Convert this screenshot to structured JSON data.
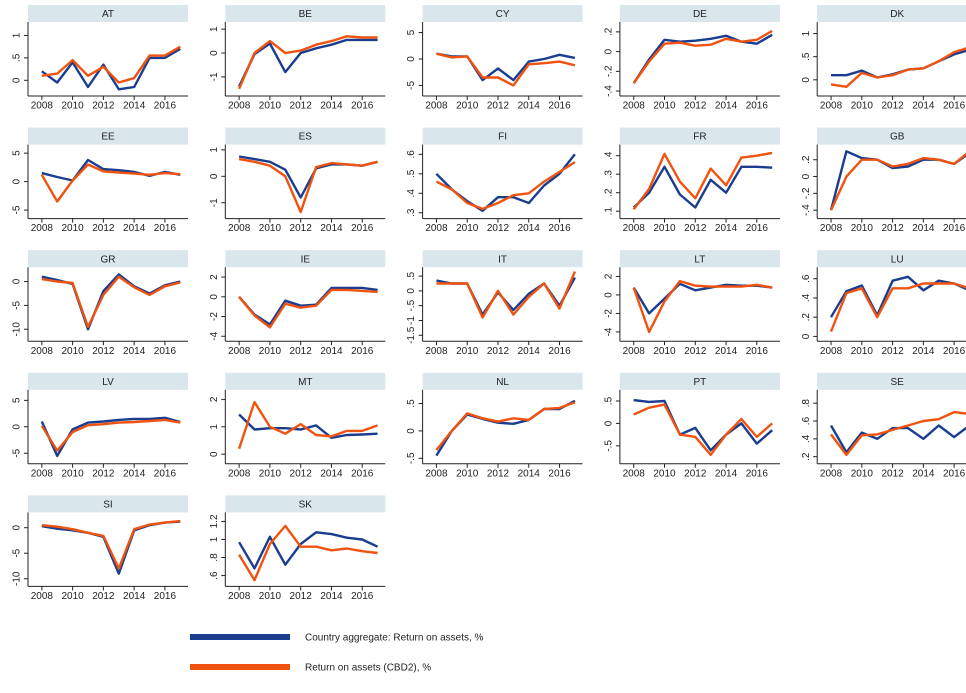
{
  "chart_data": {
    "type": "line",
    "x": [
      2008,
      2009,
      2010,
      2011,
      2012,
      2013,
      2014,
      2015,
      2016,
      2017
    ],
    "xlim": [
      2007.1,
      2017.5
    ],
    "xticks": [
      2008,
      2010,
      2012,
      2014,
      2016
    ],
    "series": [
      {
        "name": "Country aggregate: Return on assets, %",
        "color": "#1a3d8f"
      },
      {
        "name": "Return on assets (CBD2), %",
        "color": "#f0530f"
      }
    ],
    "panels": [
      {
        "title": "AT",
        "ylim": [
          -0.35,
          1.3
        ],
        "yticks": [
          0,
          {
            "value": 0.5,
            "label": ".5"
          },
          1
        ],
        "series": [
          {
            "values": [
              0.2,
              -0.05,
              0.4,
              -0.15,
              0.35,
              -0.2,
              -0.15,
              0.5,
              0.5,
              0.7
            ]
          },
          {
            "values": [
              0.1,
              0.15,
              0.45,
              0.1,
              0.3,
              -0.05,
              0.05,
              0.55,
              0.55,
              0.75
            ]
          }
        ]
      },
      {
        "title": "BE",
        "ylim": [
          -1.8,
          1.3
        ],
        "yticks": [
          -1,
          0,
          1
        ],
        "series": [
          {
            "values": [
              -1.4,
              -0.05,
              0.4,
              -0.8,
              0.0,
              0.2,
              0.35,
              0.55,
              0.55,
              0.55
            ]
          },
          {
            "values": [
              -1.5,
              0.0,
              0.5,
              0.0,
              0.1,
              0.35,
              0.5,
              0.7,
              0.65,
              0.65
            ]
          }
        ]
      },
      {
        "title": "CY",
        "ylim": [
          -7,
          7
        ],
        "yticks": [
          -5,
          0,
          5
        ],
        "series": [
          {
            "values": [
              1,
              0.5,
              0.5,
              -4,
              -1.8,
              -4,
              -0.5,
              0,
              0.8,
              0.2
            ]
          },
          {
            "values": [
              1,
              0.3,
              0.5,
              -3.5,
              -3.5,
              -5,
              -1,
              -0.8,
              -0.5,
              -1.2
            ]
          }
        ]
      },
      {
        "title": "DE",
        "ylim": [
          -0.45,
          0.3
        ],
        "yticks": [
          {
            "value": -0.4,
            "label": "-.4"
          },
          {
            "value": -0.2,
            "label": "-.2"
          },
          0,
          {
            "value": 0.2,
            "label": ".2"
          }
        ],
        "series": [
          {
            "values": [
              -0.32,
              -0.08,
              0.12,
              0.1,
              0.11,
              0.13,
              0.16,
              0.1,
              0.08,
              0.17
            ]
          },
          {
            "values": [
              -0.32,
              -0.1,
              0.08,
              0.09,
              0.06,
              0.07,
              0.13,
              0.1,
              0.12,
              0.21
            ]
          }
        ]
      },
      {
        "title": "DK",
        "ylim": [
          -0.35,
          1.25
        ],
        "yticks": [
          0,
          {
            "value": 0.5,
            "label": ".5"
          },
          1
        ],
        "series": [
          {
            "values": [
              0.1,
              0.1,
              0.2,
              0.05,
              0.12,
              0.22,
              0.25,
              0.4,
              0.55,
              0.65
            ]
          },
          {
            "values": [
              -0.1,
              -0.15,
              0.15,
              0.05,
              0.1,
              0.22,
              0.25,
              0.4,
              0.6,
              0.7
            ]
          }
        ]
      },
      {
        "title": "EE",
        "ylim": [
          -6.5,
          6.5
        ],
        "yticks": [
          -5,
          0,
          5
        ],
        "series": [
          {
            "values": [
              1.5,
              0.8,
              0.2,
              3.8,
              2.2,
              2.0,
              1.7,
              1.0,
              1.7,
              1.2
            ]
          },
          {
            "values": [
              1.2,
              -3.5,
              0.2,
              3.0,
              1.8,
              1.6,
              1.4,
              1.2,
              1.5,
              1.3
            ]
          }
        ]
      },
      {
        "title": "ES",
        "ylim": [
          -1.6,
          1.2
        ],
        "yticks": [
          -1,
          0,
          1
        ],
        "series": [
          {
            "values": [
              0.75,
              0.65,
              0.55,
              0.25,
              -0.8,
              0.3,
              0.45,
              0.45,
              0.4,
              0.55
            ]
          },
          {
            "values": [
              0.65,
              0.55,
              0.4,
              0.0,
              -1.35,
              0.35,
              0.5,
              0.45,
              0.4,
              0.55
            ]
          }
        ]
      },
      {
        "title": "FI",
        "ylim": [
          0.27,
          0.65
        ],
        "yticks": [
          {
            "value": 0.3,
            "label": ".3"
          },
          {
            "value": 0.4,
            "label": ".4"
          },
          {
            "value": 0.5,
            "label": ".5"
          },
          {
            "value": 0.6,
            "label": ".6"
          }
        ],
        "series": [
          {
            "values": [
              0.5,
              0.42,
              0.36,
              0.31,
              0.38,
              0.38,
              0.35,
              0.44,
              0.5,
              0.6
            ]
          },
          {
            "values": [
              0.46,
              0.42,
              0.35,
              0.32,
              0.35,
              0.39,
              0.4,
              0.46,
              0.51,
              0.56
            ]
          }
        ]
      },
      {
        "title": "FR",
        "ylim": [
          0.06,
          0.46
        ],
        "yticks": [
          {
            "value": 0.1,
            "label": ".1"
          },
          {
            "value": 0.2,
            "label": ".2"
          },
          {
            "value": 0.3,
            "label": ".3"
          },
          {
            "value": 0.4,
            "label": ".4"
          }
        ],
        "series": [
          {
            "values": [
              0.12,
              0.2,
              0.34,
              0.19,
              0.12,
              0.27,
              0.2,
              0.34,
              0.34,
              0.335
            ]
          },
          {
            "values": [
              0.11,
              0.22,
              0.41,
              0.26,
              0.17,
              0.33,
              0.24,
              0.39,
              0.4,
              0.415
            ]
          }
        ]
      },
      {
        "title": "GB",
        "ylim": [
          -0.5,
          0.38
        ],
        "yticks": [
          {
            "value": -0.4,
            "label": "-.4"
          },
          {
            "value": -0.2,
            "label": "-.2"
          },
          0,
          {
            "value": 0.2,
            "label": ".2"
          }
        ],
        "series": [
          {
            "values": [
              -0.4,
              0.3,
              0.22,
              0.2,
              0.1,
              0.12,
              0.2,
              0.2,
              0.15,
              0.28
            ]
          },
          {
            "values": [
              -0.4,
              0.0,
              0.2,
              0.2,
              0.12,
              0.15,
              0.22,
              0.2,
              0.15,
              0.3
            ]
          }
        ]
      },
      {
        "title": "GR",
        "ylim": [
          -12.5,
          3
        ],
        "yticks": [
          -10,
          -5,
          0
        ],
        "series": [
          {
            "values": [
              1,
              0.3,
              -0.5,
              -10,
              -2,
              1.5,
              -1,
              -2.5,
              -0.8,
              0
            ]
          },
          {
            "values": [
              0.5,
              0,
              -0.3,
              -9.5,
              -2.8,
              1,
              -1.2,
              -2.8,
              -1,
              -0.2
            ]
          }
        ]
      },
      {
        "title": "IE",
        "ylim": [
          -4.5,
          3
        ],
        "yticks": [
          -4,
          -2,
          0,
          2
        ],
        "series": [
          {
            "values": [
              0,
              -1.8,
              -2.8,
              -0.4,
              -0.9,
              -0.8,
              0.9,
              0.9,
              0.9,
              0.7
            ]
          },
          {
            "values": [
              0,
              -1.9,
              -3.1,
              -0.7,
              -1.1,
              -0.9,
              0.7,
              0.7,
              0.6,
              0.5
            ]
          }
        ]
      },
      {
        "title": "IT",
        "ylim": [
          -1.7,
          0.8
        ],
        "yticks": [
          {
            "value": -1.5,
            "label": "-1.5"
          },
          -1,
          {
            "value": -0.5,
            "label": "-.5"
          },
          0,
          {
            "value": 0.5,
            "label": ".5"
          }
        ],
        "series": [
          {
            "values": [
              0.35,
              0.25,
              0.25,
              -0.8,
              -0.05,
              -0.65,
              -0.1,
              0.25,
              -0.5,
              0.45
            ]
          },
          {
            "values": [
              0.25,
              0.25,
              0.25,
              -0.9,
              0,
              -0.8,
              -0.2,
              0.25,
              -0.6,
              0.65
            ]
          }
        ]
      },
      {
        "title": "LT",
        "ylim": [
          -5,
          3
        ],
        "yticks": [
          -4,
          -2,
          0,
          2
        ],
        "series": [
          {
            "values": [
              0.8,
              -2,
              -0.4,
              1.2,
              0.5,
              0.8,
              1.1,
              1.0,
              1.0,
              0.8
            ]
          },
          {
            "values": [
              0.8,
              -4,
              -0.7,
              1.5,
              1.0,
              0.9,
              0.9,
              0.9,
              1.1,
              0.8
            ]
          }
        ]
      },
      {
        "title": "LU",
        "ylim": [
          -0.05,
          0.72
        ],
        "yticks": [
          0,
          {
            "value": 0.2,
            "label": ".2"
          },
          {
            "value": 0.4,
            "label": ".4"
          },
          {
            "value": 0.6,
            "label": ".6"
          }
        ],
        "series": [
          {
            "values": [
              0.2,
              0.47,
              0.53,
              0.22,
              0.58,
              0.62,
              0.48,
              0.58,
              0.55,
              0.48
            ]
          },
          {
            "values": [
              0.05,
              0.45,
              0.5,
              0.2,
              0.5,
              0.5,
              0.55,
              0.55,
              0.55,
              0.5
            ]
          }
        ]
      },
      {
        "title": "LV",
        "ylim": [
          -7,
          7
        ],
        "yticks": [
          -5,
          0,
          5
        ],
        "series": [
          {
            "values": [
              1,
              -5.5,
              -0.5,
              0.8,
              1.0,
              1.3,
              1.5,
              1.5,
              1.7,
              0.9
            ]
          },
          {
            "values": [
              0.2,
              -4.5,
              -1.0,
              0.3,
              0.5,
              0.8,
              0.9,
              1.1,
              1.3,
              0.8
            ]
          }
        ]
      },
      {
        "title": "MT",
        "ylim": [
          -0.35,
          2.35
        ],
        "yticks": [
          0,
          1,
          2
        ],
        "series": [
          {
            "values": [
              1.45,
              0.9,
              0.95,
              0.95,
              0.9,
              1.05,
              0.6,
              0.7,
              0.72,
              0.75
            ]
          },
          {
            "values": [
              0.2,
              1.9,
              1.0,
              0.75,
              1.1,
              0.7,
              0.65,
              0.85,
              0.85,
              1.05
            ]
          }
        ]
      },
      {
        "title": "NL",
        "ylim": [
          -0.6,
          0.75
        ],
        "yticks": [
          {
            "value": -0.5,
            "label": "-.5"
          },
          0,
          {
            "value": 0.5,
            "label": ".5"
          }
        ],
        "series": [
          {
            "values": [
              -0.45,
              0,
              0.3,
              0.22,
              0.15,
              0.13,
              0.2,
              0.4,
              0.4,
              0.55
            ]
          },
          {
            "values": [
              -0.35,
              0,
              0.32,
              0.23,
              0.17,
              0.23,
              0.2,
              0.4,
              0.42,
              0.52
            ]
          }
        ]
      },
      {
        "title": "PT",
        "ylim": [
          -0.9,
          0.75
        ],
        "yticks": [
          {
            "value": -0.5,
            "label": "-.5"
          },
          0,
          {
            "value": 0.5,
            "label": ".5"
          }
        ],
        "series": [
          {
            "values": [
              0.52,
              0.48,
              0.5,
              -0.25,
              -0.1,
              -0.6,
              -0.25,
              0.0,
              -0.45,
              -0.15
            ]
          },
          {
            "values": [
              0.2,
              0.35,
              0.42,
              -0.25,
              -0.3,
              -0.7,
              -0.25,
              0.1,
              -0.3,
              0.0
            ]
          }
        ]
      },
      {
        "title": "SE",
        "ylim": [
          0.12,
          0.95
        ],
        "yticks": [
          {
            "value": 0.2,
            "label": ".2"
          },
          {
            "value": 0.4,
            "label": ".4"
          },
          {
            "value": 0.6,
            "label": ".6"
          },
          {
            "value": 0.8,
            "label": ".8"
          }
        ],
        "series": [
          {
            "values": [
              0.55,
              0.25,
              0.47,
              0.4,
              0.52,
              0.52,
              0.4,
              0.55,
              0.42,
              0.55
            ]
          },
          {
            "values": [
              0.45,
              0.22,
              0.44,
              0.45,
              0.5,
              0.55,
              0.6,
              0.62,
              0.7,
              0.68
            ]
          }
        ]
      },
      {
        "title": "SI",
        "ylim": [
          -11.5,
          3
        ],
        "yticks": [
          -10,
          -5,
          0
        ],
        "series": [
          {
            "values": [
              0.3,
              -0.2,
              -0.5,
              -1.0,
              -1.8,
              -9,
              -0.5,
              0.5,
              1.0,
              1.2
            ]
          },
          {
            "values": [
              0.5,
              0.2,
              -0.3,
              -1.0,
              -1.6,
              -8,
              -0.3,
              0.6,
              1.0,
              1.3
            ]
          }
        ]
      },
      {
        "title": "SK",
        "ylim": [
          0.48,
          1.3
        ],
        "yticks": [
          {
            "value": 0.6,
            "label": ".6"
          },
          {
            "value": 0.8,
            "label": ".8"
          },
          1,
          1.2
        ],
        "series": [
          {
            "values": [
              0.97,
              0.68,
              1.03,
              0.72,
              0.95,
              1.08,
              1.06,
              1.02,
              1.0,
              0.92
            ]
          },
          {
            "values": [
              0.83,
              0.55,
              0.95,
              1.15,
              0.92,
              0.92,
              0.88,
              0.9,
              0.87,
              0.85
            ]
          }
        ]
      }
    ]
  }
}
